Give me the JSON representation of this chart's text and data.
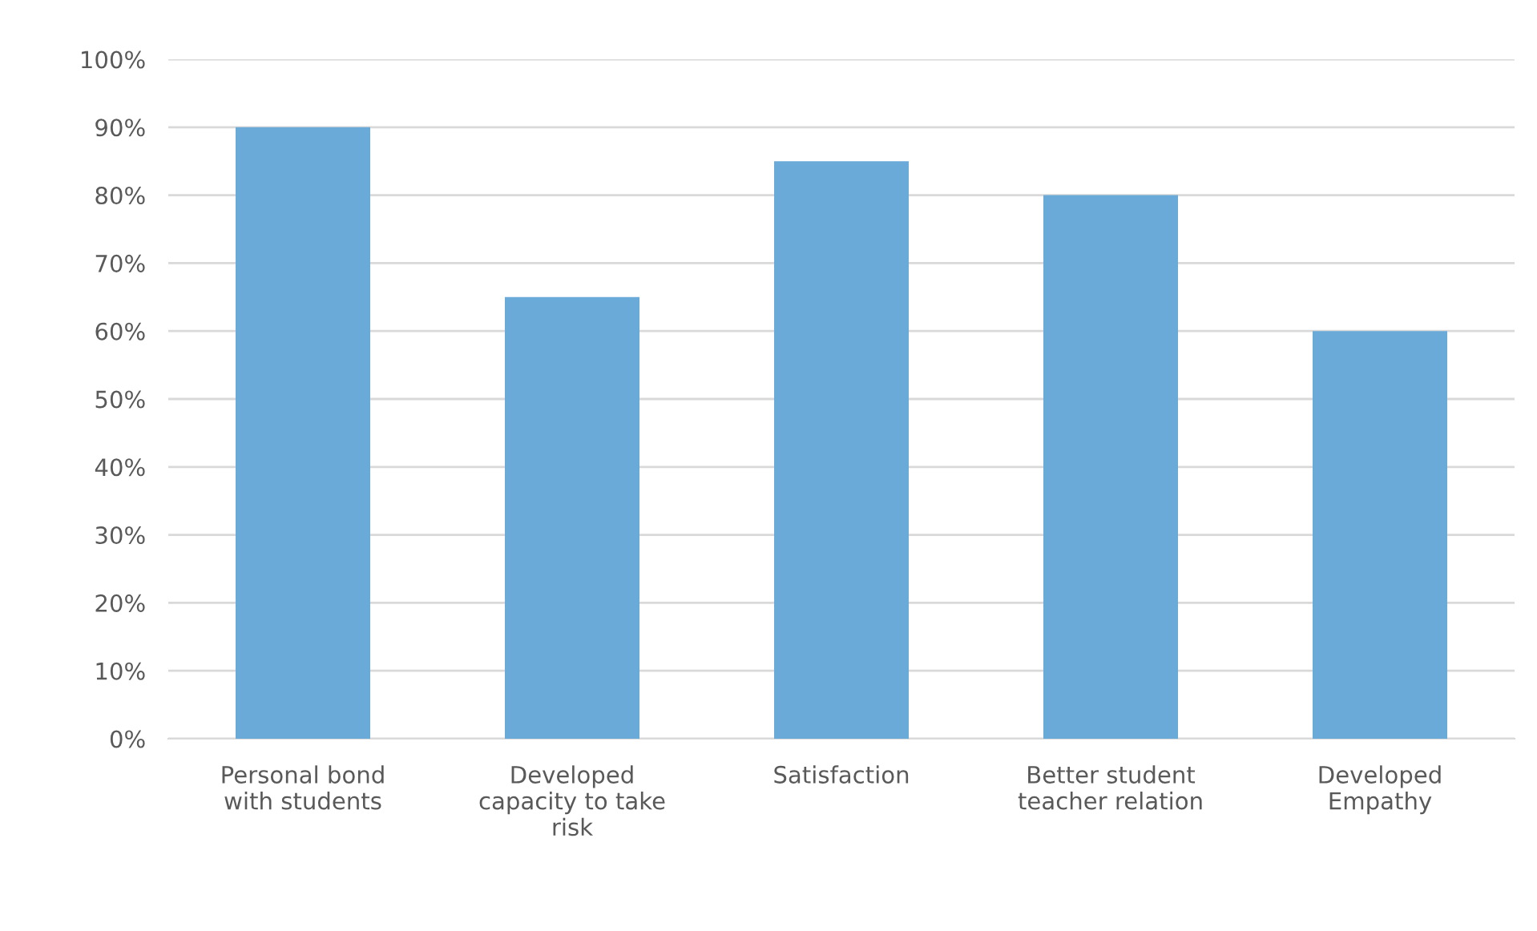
{
  "chart_data": {
    "type": "bar",
    "categories": [
      "Personal bond with students",
      "Developed capacity to take risk",
      "Satisfaction",
      "Better student teacher relation",
      "Developed Empathy"
    ],
    "values": [
      90,
      65,
      85,
      80,
      60
    ],
    "color": "#6aaad9",
    "ylim": [
      0,
      100
    ],
    "yticks": [
      {
        "value": 0,
        "label": "0%"
      },
      {
        "value": 10,
        "label": "10%"
      },
      {
        "value": 20,
        "label": "20%"
      },
      {
        "value": 30,
        "label": "30%"
      },
      {
        "value": 40,
        "label": "40%"
      },
      {
        "value": 50,
        "label": "50%"
      },
      {
        "value": 60,
        "label": "60%"
      },
      {
        "value": 70,
        "label": "70%"
      },
      {
        "value": 80,
        "label": "80%"
      },
      {
        "value": 90,
        "label": "90%"
      },
      {
        "value": 100,
        "label": "100%"
      }
    ],
    "grid": "y"
  }
}
